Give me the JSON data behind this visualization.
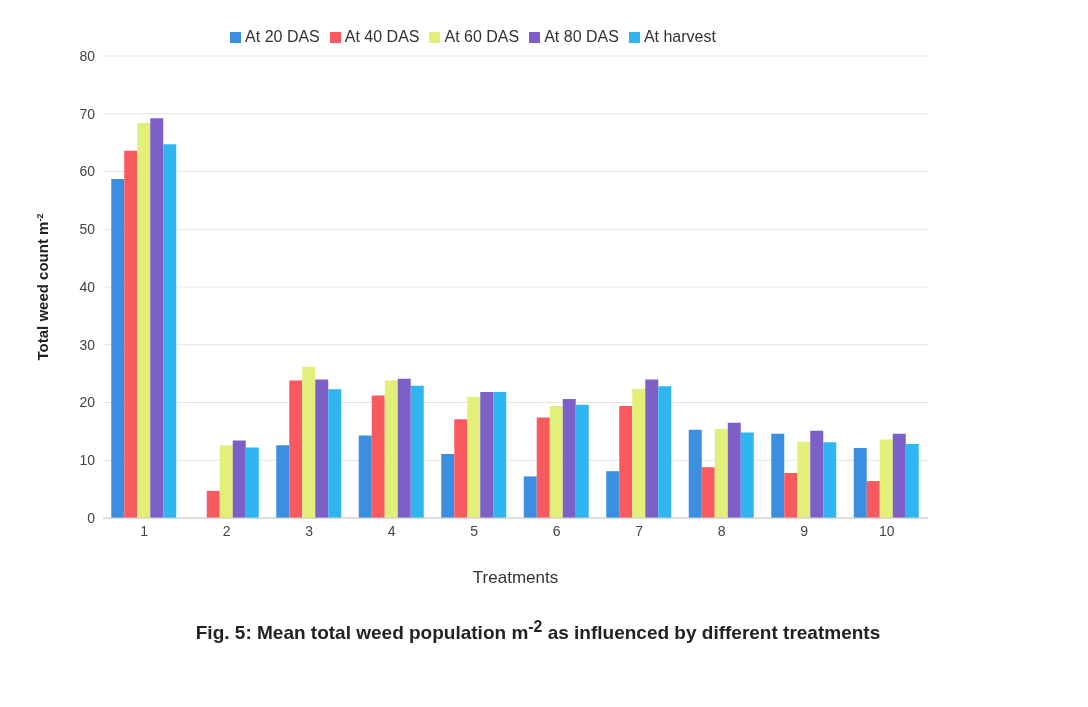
{
  "chart_data": {
    "type": "bar",
    "title": "Fig. 5: Mean total weed population m$^{-2}$ as influenced by different treatments",
    "xlabel": "Treatments",
    "ylabel": "Total weed count m$^{-2}$",
    "categories": [
      "1",
      "2",
      "3",
      "4",
      "5",
      "6",
      "7",
      "8",
      "9",
      "10"
    ],
    "series": [
      {
        "name": "At 20 DAS",
        "color": "#3b8fe0",
        "values": [
          58.7,
          0,
          12.6,
          14.3,
          11.1,
          7.2,
          8.1,
          15.3,
          14.6,
          12.1
        ]
      },
      {
        "name": "At 40 DAS",
        "color": "#f95a5f",
        "values": [
          63.6,
          4.7,
          23.8,
          21.2,
          17.1,
          17.4,
          19.4,
          8.8,
          7.8,
          6.4
        ]
      },
      {
        "name": "At 60 DAS",
        "color": "#e2f07a",
        "values": [
          68.4,
          12.6,
          26.2,
          23.8,
          21.0,
          19.4,
          22.4,
          15.4,
          13.2,
          13.6
        ]
      },
      {
        "name": "At 80 DAS",
        "color": "#7d5fc8",
        "values": [
          69.2,
          13.4,
          24.0,
          24.1,
          21.8,
          20.6,
          24.0,
          16.5,
          15.1,
          14.6
        ]
      },
      {
        "name": "At harvest",
        "color": "#2fb6f0",
        "values": [
          64.7,
          12.2,
          22.3,
          22.9,
          21.8,
          19.6,
          22.8,
          14.8,
          13.1,
          12.8
        ]
      }
    ],
    "ylim": [
      0,
      80
    ],
    "yticks": [
      0,
      10,
      20,
      30,
      40,
      50,
      60,
      70,
      80
    ],
    "grid": "y",
    "legend": "top"
  }
}
